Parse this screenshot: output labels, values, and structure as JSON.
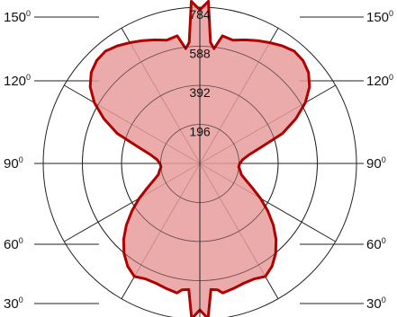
{
  "chart_data": {
    "type": "polar-area",
    "title": "",
    "radial_axis": {
      "ticks": [
        196,
        392,
        588,
        784
      ],
      "tick_labels": [
        "196",
        "392",
        "588",
        "784"
      ],
      "max": 784
    },
    "angular_axis": {
      "labels": [
        {
          "text": "150",
          "deg": "0"
        },
        {
          "text": "120",
          "deg": "0"
        },
        {
          "text": "90",
          "deg": "0"
        },
        {
          "text": "60",
          "deg": "0"
        },
        {
          "text": "30",
          "deg": "0"
        }
      ]
    },
    "series": [
      {
        "fill_color": "#e89c9c",
        "line_color": "#b00000",
        "angles_deg": [
          0,
          3,
          5,
          8,
          10,
          15,
          20,
          25,
          30,
          35,
          40,
          45,
          50,
          55,
          60,
          65,
          70,
          75,
          80,
          85,
          90,
          95,
          100,
          105,
          110,
          115,
          120,
          125,
          130,
          135,
          140,
          145,
          150,
          155,
          160,
          165,
          170,
          173,
          175,
          177,
          180
        ],
        "values": [
          735,
          780,
          635,
          640,
          660,
          650,
          640,
          640,
          655,
          630,
          590,
          540,
          480,
          415,
          350,
          290,
          245,
          215,
          205,
          195,
          200,
          215,
          250,
          320,
          440,
          530,
          610,
          670,
          710,
          730,
          735,
          720,
          700,
          680,
          660,
          640,
          650,
          580,
          610,
          815,
          770
        ]
      }
    ]
  },
  "colors": {
    "grid": "#222222",
    "background": "#ffffff"
  }
}
